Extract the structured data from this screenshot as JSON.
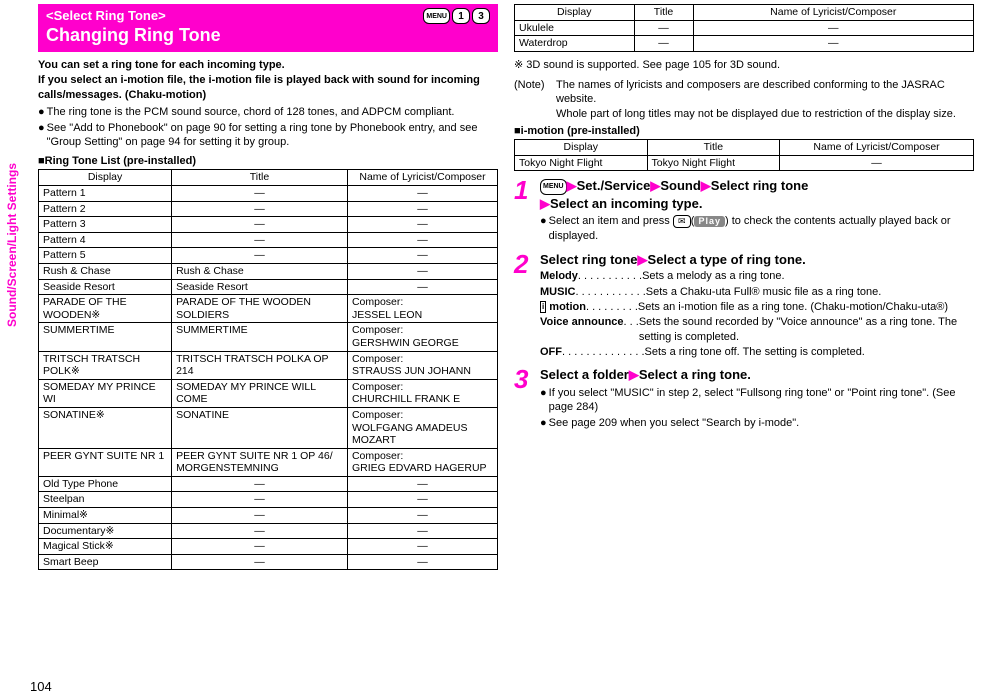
{
  "colors": {
    "accent": "#ff00cc",
    "text": "#000000",
    "background": "#ffffff"
  },
  "page_number": "104",
  "side_tab": "Sound/Screen/Light Settings",
  "header": {
    "subtitle": "<Select Ring Tone>",
    "title": "Changing Ring Tone",
    "keys": [
      "MENU",
      "1",
      "3"
    ]
  },
  "intro": {
    "bold1": "You can set a ring tone for each incoming type.",
    "bold2": "If you select an i-motion file, the i-motion file is played back with sound for incoming calls/messages. (Chaku-motion)",
    "bullets": [
      "The ring tone is the PCM sound source, chord of 128 tones, and ADPCM compliant.",
      "See \"Add to Phonebook\" on page 90 for setting a ring tone by Phonebook entry, and see \"Group Setting\" on page 94 for setting it by group."
    ]
  },
  "ringtone_section_title": "■Ring Tone List (pre-installed)",
  "ringtone_table": {
    "columns": [
      "Display",
      "Title",
      "Name of Lyricist/Composer"
    ],
    "col_widths": [
      "33%",
      "33%",
      "34%"
    ],
    "rows": [
      {
        "display": "Pattern 1",
        "title": "—",
        "composer": "—",
        "title_center": true,
        "composer_center": true
      },
      {
        "display": "Pattern 2",
        "title": "—",
        "composer": "—",
        "title_center": true,
        "composer_center": true
      },
      {
        "display": "Pattern 3",
        "title": "—",
        "composer": "—",
        "title_center": true,
        "composer_center": true
      },
      {
        "display": "Pattern 4",
        "title": "—",
        "composer": "—",
        "title_center": true,
        "composer_center": true
      },
      {
        "display": "Pattern 5",
        "title": "—",
        "composer": "—",
        "title_center": true,
        "composer_center": true
      },
      {
        "display": "Rush & Chase",
        "title": "Rush & Chase",
        "composer": "—",
        "composer_center": true
      },
      {
        "display": "Seaside Resort",
        "title": "Seaside Resort",
        "composer": "—",
        "composer_center": true
      },
      {
        "display": "PARADE OF THE WOODEN※",
        "title": "PARADE OF THE WOODEN SOLDIERS",
        "composer": "Composer:\nJESSEL LEON"
      },
      {
        "display": "SUMMERTIME",
        "title": "SUMMERTIME",
        "composer": "Composer:\nGERSHWIN GEORGE"
      },
      {
        "display": "TRITSCH TRATSCH POLK※",
        "title": "TRITSCH TRATSCH POLKA OP 214",
        "composer": "Composer:\nSTRAUSS JUN JOHANN"
      },
      {
        "display": "SOMEDAY MY PRINCE WI",
        "title": "SOMEDAY MY PRINCE WILL COME",
        "composer": "Composer:\nCHURCHILL FRANK E"
      },
      {
        "display": "SONATINE※",
        "title": "SONATINE",
        "composer": "Composer:\nWOLFGANG AMADEUS MOZART"
      },
      {
        "display": "PEER GYNT SUITE NR 1",
        "title": "PEER GYNT SUITE NR 1 OP 46/\nMORGENSTEMNING",
        "composer": "Composer:\nGRIEG EDVARD HAGERUP"
      },
      {
        "display": "Old Type Phone",
        "title": "—",
        "composer": "—",
        "title_center": true,
        "composer_center": true
      },
      {
        "display": "Steelpan",
        "title": "—",
        "composer": "—",
        "title_center": true,
        "composer_center": true
      },
      {
        "display": "Minimal※",
        "title": "—",
        "composer": "—",
        "title_center": true,
        "composer_center": true
      },
      {
        "display": "Documentary※",
        "title": "—",
        "composer": "—",
        "title_center": true,
        "composer_center": true
      },
      {
        "display": "Magical Stick※",
        "title": "—",
        "composer": "—",
        "title_center": true,
        "composer_center": true
      },
      {
        "display": "Smart Beep",
        "title": "—",
        "composer": "—",
        "title_center": true,
        "composer_center": true
      }
    ]
  },
  "ringtone_table2": {
    "columns": [
      "Display",
      "Title",
      "Name of Lyricist/Composer"
    ],
    "rows": [
      {
        "display": "Ukulele",
        "title": "—",
        "composer": "—",
        "title_center": true,
        "composer_center": true
      },
      {
        "display": "Waterdrop",
        "title": "—",
        "composer": "—",
        "title_center": true,
        "composer_center": true
      }
    ]
  },
  "notes_after_table": {
    "mark": "※ 3D sound is supported. See page 105 for 3D sound.",
    "note_label": "(Note)",
    "note_text": "The names of lyricists and composers are described conforming to the JASRAC website.\nWhole part of long titles may not be displayed due to restriction of the display size."
  },
  "imotion_section_title": "■i-motion (pre-installed)",
  "imotion_table": {
    "columns": [
      "Display",
      "Title",
      "Name of Lyricist/Composer"
    ],
    "rows": [
      {
        "display": "Tokyo Night Flight",
        "title": "Tokyo Night Flight",
        "composer": "—",
        "composer_center": true
      }
    ]
  },
  "steps": [
    {
      "num": "1",
      "main_parts": [
        "Set./Service",
        "Sound",
        "Select ring tone",
        "Select an incoming type."
      ],
      "prefix_key": "MENU",
      "bullets": [
        "Select an item and press [MAIL]([PLAY]) to check the contents actually played back or displayed."
      ]
    },
    {
      "num": "2",
      "main_parts_plain": "Select ring tone▶Select a type of ring tone.",
      "defs": [
        {
          "label": "Melody",
          "dots": " . . . . . . . . . . . ",
          "text": "Sets a melody as a ring tone."
        },
        {
          "label": "MUSIC",
          "dots": ". . . . . . . . . . . . ",
          "text": "Sets a Chaku-uta Full® music file as a ring tone."
        },
        {
          "label_icon": "i_motion",
          "label": " motion",
          "dots": "  . . . . . . . . . ",
          "text": "Sets an i-motion file as a ring tone. (Chaku-motion/Chaku-uta®)"
        },
        {
          "label": "Voice announce",
          "dots": "  . . . ",
          "text": "Sets the sound recorded by \"Voice announce\" as a ring tone. The setting is completed."
        },
        {
          "label": "OFF",
          "dots": " . . . . . . . . . . . . . . ",
          "text": "Sets a ring tone off. The setting is completed."
        }
      ]
    },
    {
      "num": "3",
      "main_parts_plain": "Select a folder▶Select a ring tone.",
      "bullets": [
        "If you select \"MUSIC\" in step 2, select \"Fullsong ring tone\" or \"Point ring tone\". (See page 284)",
        "See page 209 when you select \"Search by i-mode\"."
      ]
    }
  ]
}
